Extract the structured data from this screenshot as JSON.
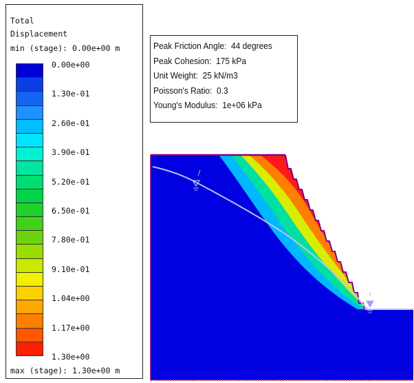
{
  "legend": {
    "title_line1": "Total",
    "title_line2": "Displacement",
    "min_text": "min (stage): 0.00e+00 m",
    "max_text": "max (stage): 1.30e+00 m",
    "tick_labels": [
      "0.00e+00",
      "1.30e-01",
      "2.60e-01",
      "3.90e-01",
      "5.20e-01",
      "6.50e-01",
      "7.80e-01",
      "9.10e-01",
      "1.04e+00",
      "1.17e+00",
      "1.30e+00"
    ],
    "colors": [
      "#0000d8",
      "#0b3ee6",
      "#1466f0",
      "#1e90ff",
      "#00bfff",
      "#00e5ff",
      "#00f0d0",
      "#00e6a0",
      "#00dd70",
      "#00d448",
      "#1ed22a",
      "#40d21a",
      "#6cd40c",
      "#9ade00",
      "#c8ea00",
      "#f0f000",
      "#ffd000",
      "#ffa800",
      "#ff8000",
      "#ff5800",
      "#ff2000"
    ]
  },
  "material_properties": [
    "Peak Friction Angle:  44 degrees",
    "Peak Cohesion:  175 kPa",
    "Unit Weight:  25 kN/m3",
    "Poisson's Ratio:  0.3",
    "Young's Modulus:  1e+06 kPa"
  ],
  "model_colors": {
    "background": "#0000e0",
    "boundary": "#800080",
    "water_table": "#b0b0e8",
    "excavated": "#ffffff"
  }
}
